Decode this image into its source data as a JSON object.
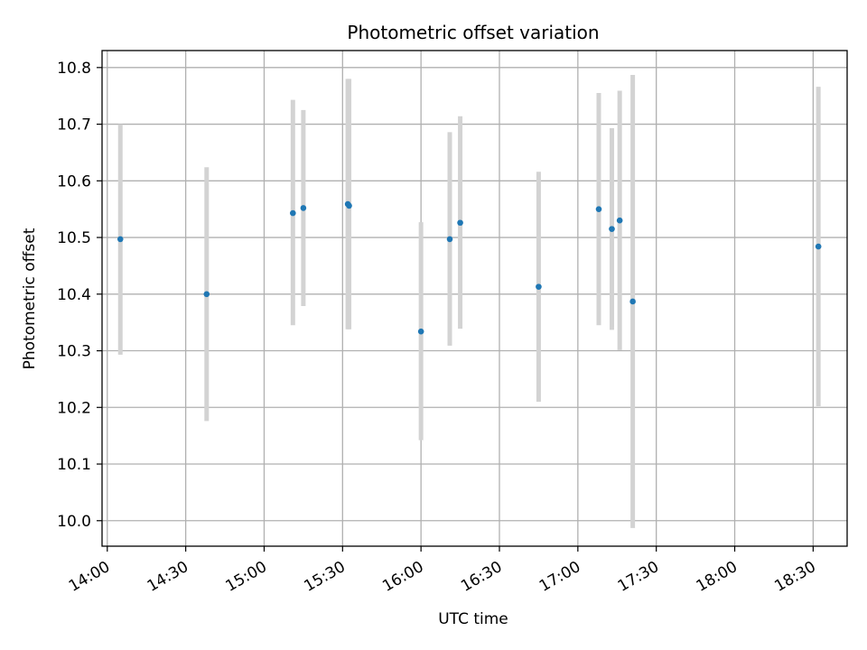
{
  "chart_data": {
    "type": "scatter",
    "title": "Photometric offset variation",
    "xlabel": "UTC time",
    "ylabel": "Photometric offset",
    "x_ticks": [
      "14:00",
      "14:30",
      "15:00",
      "15:30",
      "16:00",
      "16:30",
      "17:00",
      "17:30",
      "18:00",
      "18:30"
    ],
    "y_ticks": [
      "10.0",
      "10.1",
      "10.2",
      "10.3",
      "10.4",
      "10.5",
      "10.6",
      "10.7",
      "10.8"
    ],
    "xlim": [
      "13:58",
      "18:43"
    ],
    "ylim": [
      9.955,
      10.83
    ],
    "grid": true,
    "point_color": "#1f77b4",
    "errorbar_color": "#d3d3d3",
    "points": [
      {
        "x": "14:05",
        "y": 10.497,
        "yerr_low": 10.293,
        "yerr_high": 10.7
      },
      {
        "x": "14:38",
        "y": 10.4,
        "yerr_low": 10.176,
        "yerr_high": 10.624
      },
      {
        "x": "15:11",
        "y": 10.543,
        "yerr_low": 10.345,
        "yerr_high": 10.743
      },
      {
        "x": "15:15",
        "y": 10.552,
        "yerr_low": 10.379,
        "yerr_high": 10.725
      },
      {
        "x": "15:32",
        "y": 10.559,
        "yerr_low": 10.338,
        "yerr_high": 10.78
      },
      {
        "x": "15:32:30",
        "y": 10.556,
        "yerr_low": 10.338,
        "yerr_high": 10.78
      },
      {
        "x": "16:00",
        "y": 10.334,
        "yerr_low": 10.142,
        "yerr_high": 10.527
      },
      {
        "x": "16:11",
        "y": 10.497,
        "yerr_low": 10.309,
        "yerr_high": 10.686
      },
      {
        "x": "16:15",
        "y": 10.526,
        "yerr_low": 10.339,
        "yerr_high": 10.714
      },
      {
        "x": "16:45",
        "y": 10.413,
        "yerr_low": 10.21,
        "yerr_high": 10.616
      },
      {
        "x": "17:08",
        "y": 10.55,
        "yerr_low": 10.345,
        "yerr_high": 10.755
      },
      {
        "x": "17:13",
        "y": 10.515,
        "yerr_low": 10.337,
        "yerr_high": 10.693
      },
      {
        "x": "17:16",
        "y": 10.53,
        "yerr_low": 10.301,
        "yerr_high": 10.759
      },
      {
        "x": "17:21",
        "y": 10.387,
        "yerr_low": 9.987,
        "yerr_high": 10.787
      },
      {
        "x": "18:32",
        "y": 10.484,
        "yerr_low": 10.202,
        "yerr_high": 10.766
      }
    ]
  }
}
